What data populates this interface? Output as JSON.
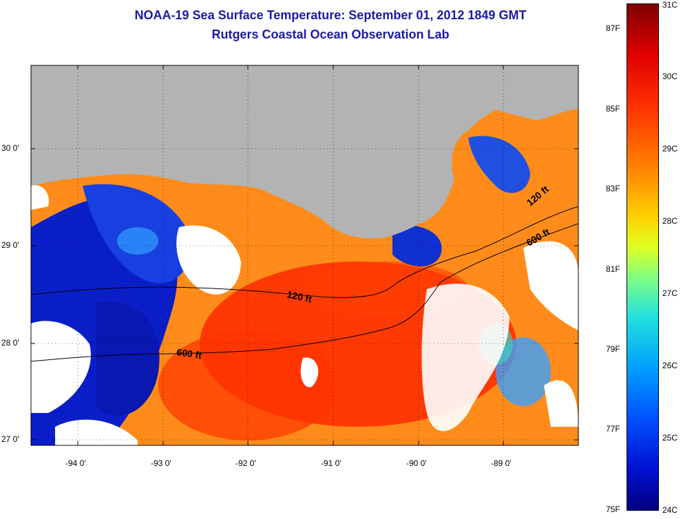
{
  "title": {
    "line1": "NOAA-19 Sea Surface Temperature:  September 01, 2012 1849 GMT",
    "line2": "Rutgers Coastal Ocean Observation Lab"
  },
  "map": {
    "lat_labels": [
      "30 0'",
      "29 0'",
      "28 0'",
      "27 0'"
    ],
    "lon_labels": [
      "-94 0'",
      "-93 0'",
      "-92 0'",
      "-91 0'",
      "-90 0'",
      "-89 0'"
    ],
    "isobaths": [
      {
        "label": "120 ft"
      },
      {
        "label": "600 ft"
      },
      {
        "label": "120 ft"
      },
      {
        "label": "600 ft"
      }
    ],
    "colors": {
      "land": "#b3b3b3",
      "cloud": "#ffffff"
    }
  },
  "colorbar": {
    "range_c": [
      24,
      31
    ],
    "range_f": [
      75,
      88
    ],
    "celsius_labels": [
      "31C",
      "30C",
      "29C",
      "28C",
      "27C",
      "26C",
      "25C",
      "24C"
    ],
    "fahrenheit_labels": [
      "87F",
      "85F",
      "83F",
      "81F",
      "79F",
      "77F",
      "75F"
    ],
    "colormap": "jet"
  }
}
